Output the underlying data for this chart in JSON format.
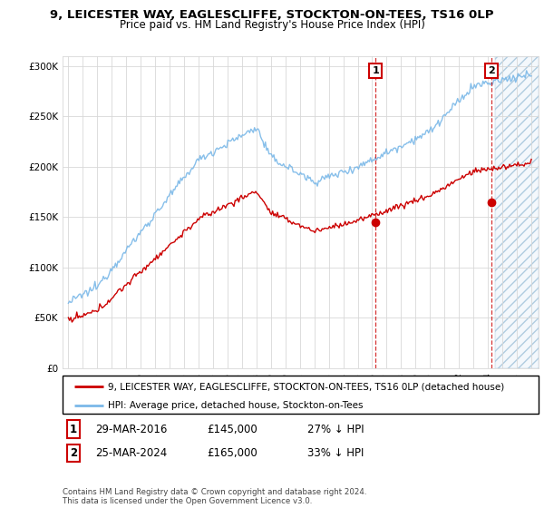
{
  "title1": "9, LEICESTER WAY, EAGLESCLIFFE, STOCKTON-ON-TEES, TS16 0LP",
  "title2": "Price paid vs. HM Land Registry's House Price Index (HPI)",
  "legend_line1": "9, LEICESTER WAY, EAGLESCLIFFE, STOCKTON-ON-TEES, TS16 0LP (detached house)",
  "legend_line2": "HPI: Average price, detached house, Stockton-on-Tees",
  "transaction1_date": "29-MAR-2016",
  "transaction1_price": "£145,000",
  "transaction1_hpi": "27% ↓ HPI",
  "transaction2_date": "25-MAR-2024",
  "transaction2_price": "£165,000",
  "transaction2_hpi": "33% ↓ HPI",
  "footer": "Contains HM Land Registry data © Crown copyright and database right 2024.\nThis data is licensed under the Open Government Licence v3.0.",
  "hpi_color": "#7ab8e8",
  "price_color": "#cc0000",
  "ylim_min": 0,
  "ylim_max": 310000,
  "transaction1_year": 2016.23,
  "transaction2_year": 2024.23,
  "t1_price": 145000,
  "t2_price": 165000
}
